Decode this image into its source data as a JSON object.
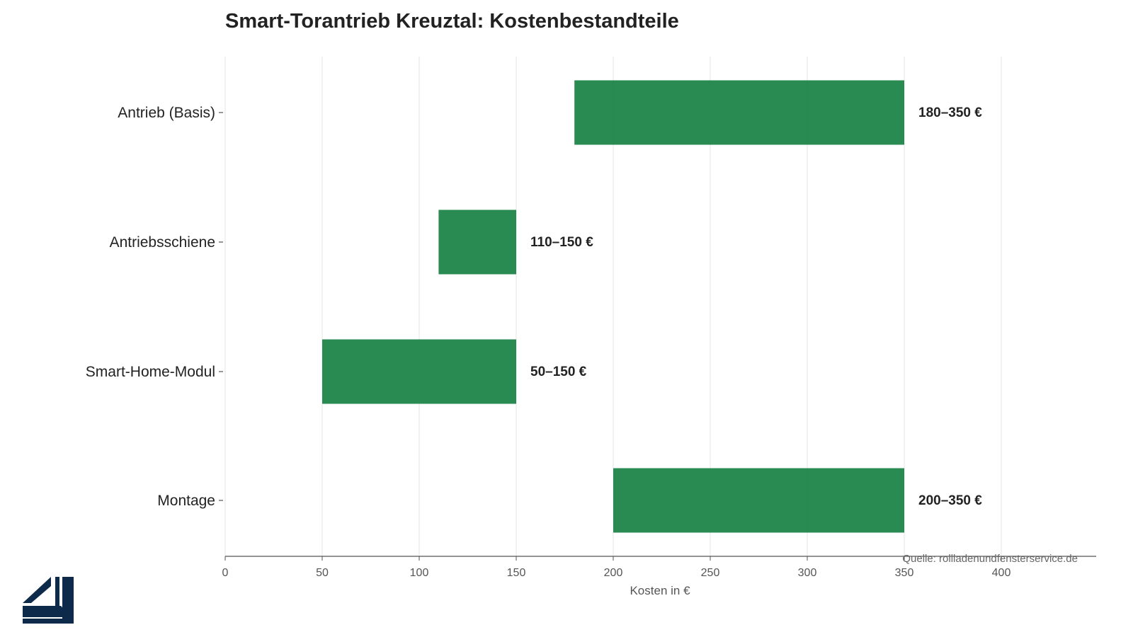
{
  "chart_data": {
    "type": "bar",
    "orientation": "horizontal-range",
    "title": "Smart-Torantrieb Kreuztal: Kostenbestandteile",
    "xlabel": "Kosten in €",
    "ylabel": "",
    "xlim": [
      0,
      450
    ],
    "xticks": [
      0,
      50,
      100,
      150,
      200,
      250,
      300,
      350,
      400
    ],
    "grid": "vertical",
    "categories": [
      "Antrieb (Basis)",
      "Antriebsschiene",
      "Smart-Home-Modul",
      "Montage"
    ],
    "series": [
      {
        "color": "#1e8449",
        "ranges": [
          [
            180,
            350
          ],
          [
            110,
            150
          ],
          [
            50,
            150
          ],
          [
            200,
            350
          ]
        ],
        "labels": [
          "180–350 €",
          "110–150 €",
          "50–150 €",
          "200–350 €"
        ]
      }
    ],
    "source": "Quelle: rollladenundfensterservice.de"
  },
  "logo": {
    "icon": "window-frame-logo-icon",
    "color": "#0d2a4a"
  }
}
